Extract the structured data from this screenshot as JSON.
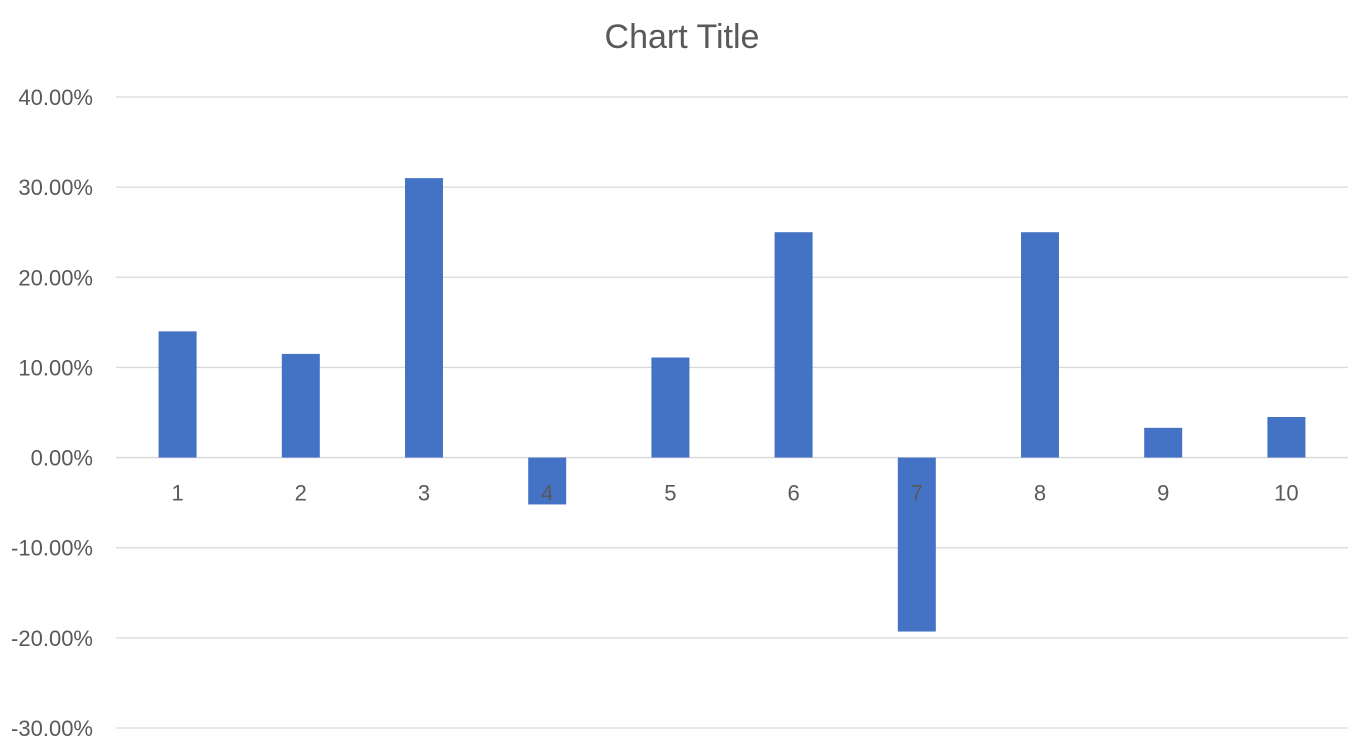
{
  "chart_data": {
    "type": "bar",
    "title": "Chart Title",
    "categories": [
      "1",
      "2",
      "3",
      "4",
      "5",
      "6",
      "7",
      "8",
      "9",
      "10"
    ],
    "series": [
      {
        "values": [
          0.14,
          0.115,
          0.31,
          -0.052,
          0.111,
          0.25,
          -0.193,
          0.25,
          0.033,
          0.045
        ],
        "color": "#4472c4"
      }
    ],
    "ylim": [
      -0.3,
      0.4
    ],
    "yticks": [
      0.4,
      0.3,
      0.2,
      0.1,
      0.0,
      -0.1,
      -0.2,
      -0.3
    ],
    "ytick_labels": [
      "40.00%",
      "30.00%",
      "20.00%",
      "10.00%",
      "0.00%",
      "-10.00%",
      "-20.00%",
      "-30.00%"
    ],
    "xlabel": "",
    "ylabel": "",
    "grid": true,
    "legend": false,
    "gridline_color": "#d9d9d9",
    "text_color": "#595959"
  }
}
